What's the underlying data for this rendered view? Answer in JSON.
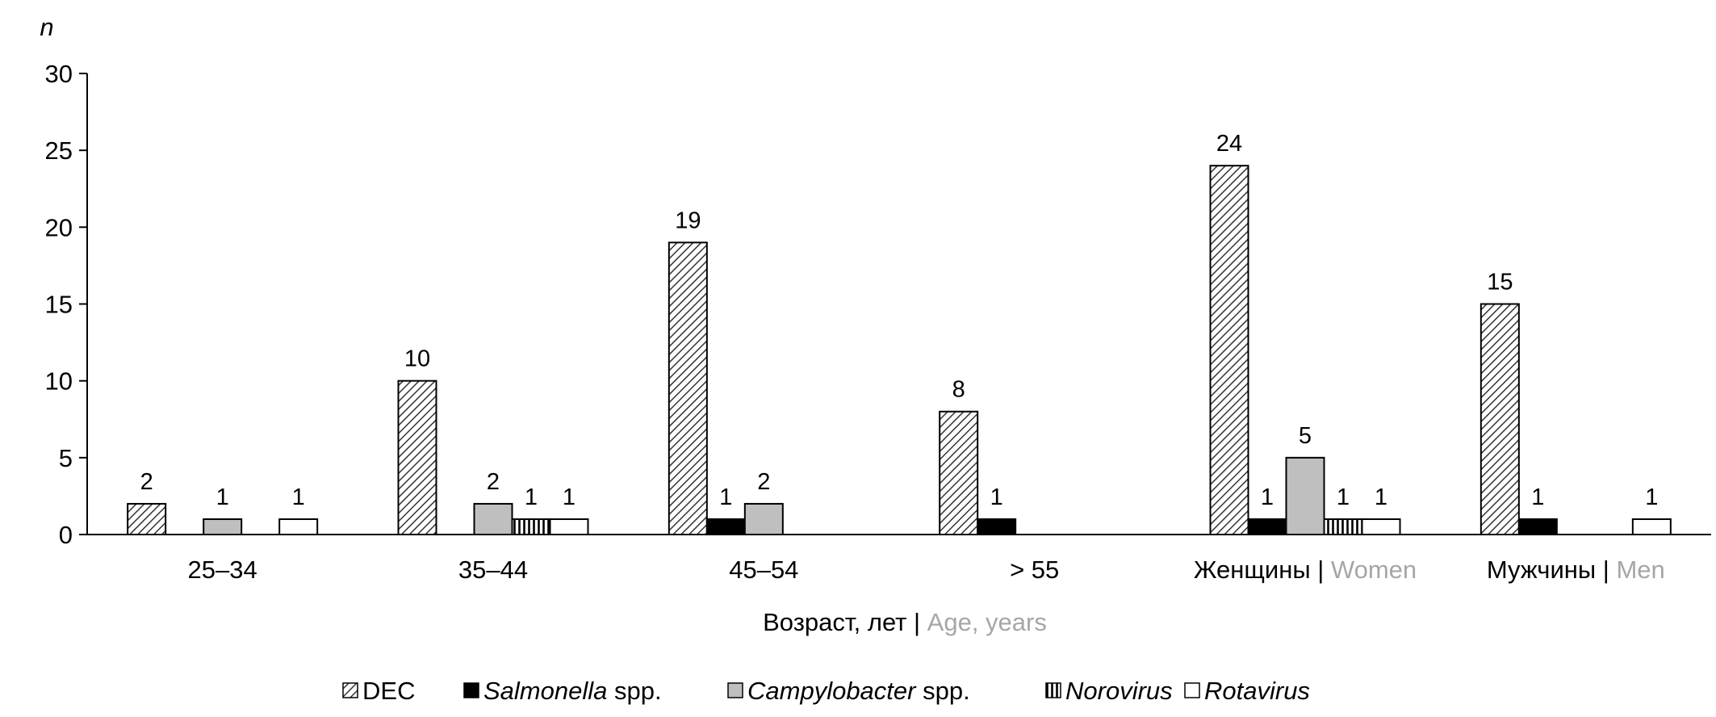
{
  "chart_data": {
    "type": "bar",
    "ylabel": "n",
    "xlabel": {
      "ru": "Возраст, лет | ",
      "en": "Age, years"
    },
    "ylim": [
      0,
      30
    ],
    "yticks": [
      0,
      5,
      10,
      15,
      20,
      25,
      30
    ],
    "grid": false,
    "legend_placement": "bottom",
    "categories": [
      {
        "ru": "25–34",
        "en": ""
      },
      {
        "ru": "35–44",
        "en": ""
      },
      {
        "ru": "45–54",
        "en": ""
      },
      {
        "ru": "> 55",
        "en": ""
      },
      {
        "ru": "Женщины | ",
        "en": "Women"
      },
      {
        "ru": "Мужчины | ",
        "en": "Men"
      }
    ],
    "series": [
      {
        "name": "DEC",
        "italic": "",
        "suffix": "DEC",
        "fill": "hatch-diagonal",
        "values": [
          2,
          10,
          19,
          8,
          24,
          15
        ]
      },
      {
        "name": "Salmonella spp.",
        "italic": "Salmonella",
        "suffix": " spp.",
        "fill": "#000000",
        "values": [
          0,
          0,
          1,
          1,
          1,
          1
        ]
      },
      {
        "name": "Campylobacter spp.",
        "italic": "Campylobacter",
        "suffix": " spp.",
        "fill": "#bfbfbf",
        "values": [
          1,
          2,
          2,
          0,
          5,
          0
        ]
      },
      {
        "name": "Norovirus",
        "italic": "Norovirus",
        "suffix": "",
        "fill": "hatch-vertical",
        "values": [
          0,
          1,
          0,
          0,
          1,
          0
        ]
      },
      {
        "name": "Rotavirus",
        "italic": "Rotavirus",
        "suffix": "",
        "fill": "#ffffff",
        "values": [
          1,
          1,
          0,
          0,
          1,
          1
        ]
      }
    ],
    "colors": {
      "secondary_text": "#a6a6a6",
      "axis": "#000000"
    }
  }
}
